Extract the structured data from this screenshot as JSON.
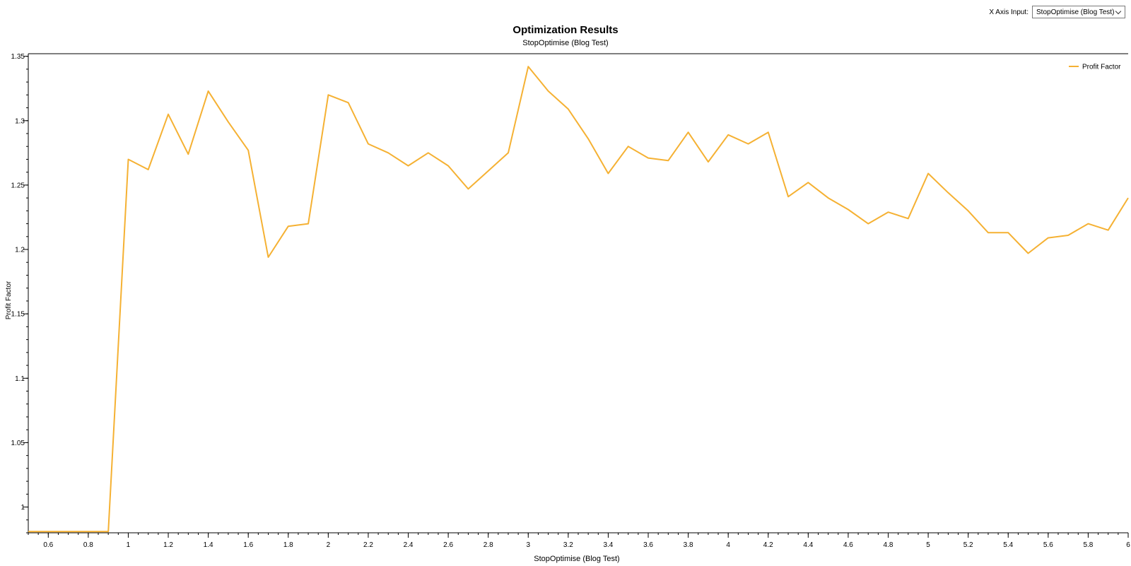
{
  "controls": {
    "x_axis_label": "X Axis Input:",
    "x_axis_value": "StopOptimise (Blog Test)"
  },
  "chart_data": {
    "type": "line",
    "title": "Optimization Results",
    "subtitle": "StopOptimise (Blog Test)",
    "xlabel": "StopOptimise (Blog Test)",
    "ylabel": "Profit Factor",
    "xlim": [
      0.5,
      6.0
    ],
    "ylim": [
      0.98,
      1.352
    ],
    "x_ticks": [
      "0.6",
      "0.8",
      "1",
      "1.2",
      "1.4",
      "1.6",
      "1.8",
      "2",
      "2.2",
      "2.4",
      "2.6",
      "2.8",
      "3",
      "3.2",
      "3.4",
      "3.6",
      "3.8",
      "4",
      "4.2",
      "4.4",
      "4.6",
      "4.8",
      "5",
      "5.2",
      "5.4",
      "5.6",
      "5.8",
      "6"
    ],
    "y_ticks": [
      "1",
      "1.05",
      "1.1",
      "1.15",
      "1.2",
      "1.25",
      "1.3",
      "1.35"
    ],
    "grid": false,
    "legend_position": "top-right",
    "series": [
      {
        "name": "Profit Factor",
        "color": "#f5b133",
        "x": [
          0.5,
          0.6,
          0.7,
          0.8,
          0.9,
          1.0,
          1.1,
          1.2,
          1.3,
          1.4,
          1.5,
          1.6,
          1.7,
          1.8,
          1.9,
          2.0,
          2.1,
          2.2,
          2.3,
          2.4,
          2.5,
          2.6,
          2.7,
          2.8,
          2.9,
          3.0,
          3.1,
          3.2,
          3.3,
          3.4,
          3.5,
          3.6,
          3.7,
          3.8,
          3.9,
          4.0,
          4.1,
          4.2,
          4.3,
          4.4,
          4.5,
          4.6,
          4.7,
          4.8,
          4.9,
          5.0,
          5.1,
          5.2,
          5.3,
          5.4,
          5.5,
          5.6,
          5.7,
          5.8,
          5.9,
          6.0
        ],
        "values": [
          0.981,
          0.981,
          0.981,
          0.981,
          0.981,
          1.27,
          1.262,
          1.305,
          1.274,
          1.323,
          1.299,
          1.277,
          1.194,
          1.218,
          1.22,
          1.32,
          1.314,
          1.282,
          1.275,
          1.265,
          1.275,
          1.265,
          1.247,
          1.261,
          1.275,
          1.342,
          1.323,
          1.309,
          1.286,
          1.259,
          1.28,
          1.271,
          1.269,
          1.291,
          1.268,
          1.289,
          1.282,
          1.291,
          1.241,
          1.252,
          1.24,
          1.231,
          1.22,
          1.229,
          1.224,
          1.259,
          1.244,
          1.23,
          1.213,
          1.213,
          1.197,
          1.209,
          1.211,
          1.22,
          1.215,
          1.24
        ]
      }
    ]
  }
}
